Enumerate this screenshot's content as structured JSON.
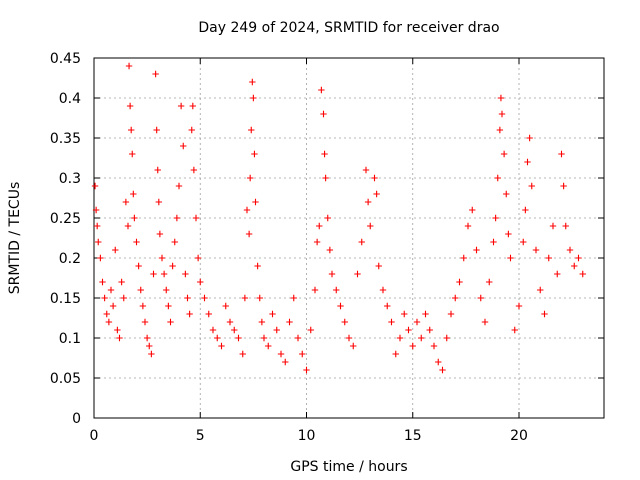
{
  "chart_data": {
    "type": "scatter",
    "title": "Day 249 of 2024, SRMTID for receiver drao",
    "xlabel": "GPS time / hours",
    "ylabel": "SRMTID / TECUs",
    "xlim": [
      0,
      24
    ],
    "ylim": [
      0,
      0.45
    ],
    "xticks": [
      0,
      5,
      10,
      15,
      20
    ],
    "xtick_labels": [
      "0",
      "5",
      "10",
      "15",
      "20"
    ],
    "yticks": [
      0,
      0.05,
      0.1,
      0.15,
      0.2,
      0.25,
      0.3,
      0.35,
      0.4,
      0.45
    ],
    "ytick_labels": [
      "0",
      "0.05",
      "0.1",
      "0.15",
      "0.2",
      "0.25",
      "0.3",
      "0.35",
      "0.4",
      "0.45"
    ],
    "grid": true,
    "marker": "+",
    "marker_color": "#ff0000",
    "series": [
      {
        "name": "SRMTID",
        "points": [
          [
            0.05,
            0.29
          ],
          [
            0.1,
            0.26
          ],
          [
            0.15,
            0.24
          ],
          [
            0.2,
            0.22
          ],
          [
            0.3,
            0.2
          ],
          [
            0.4,
            0.17
          ],
          [
            0.5,
            0.15
          ],
          [
            0.6,
            0.13
          ],
          [
            0.7,
            0.12
          ],
          [
            0.8,
            0.16
          ],
          [
            0.9,
            0.14
          ],
          [
            1.0,
            0.21
          ],
          [
            1.1,
            0.11
          ],
          [
            1.2,
            0.1
          ],
          [
            1.3,
            0.17
          ],
          [
            1.4,
            0.15
          ],
          [
            1.5,
            0.27
          ],
          [
            1.6,
            0.24
          ],
          [
            1.65,
            0.44
          ],
          [
            1.7,
            0.39
          ],
          [
            1.75,
            0.36
          ],
          [
            1.8,
            0.33
          ],
          [
            1.85,
            0.28
          ],
          [
            1.9,
            0.25
          ],
          [
            2.0,
            0.22
          ],
          [
            2.1,
            0.19
          ],
          [
            2.2,
            0.16
          ],
          [
            2.3,
            0.14
          ],
          [
            2.4,
            0.12
          ],
          [
            2.5,
            0.1
          ],
          [
            2.6,
            0.09
          ],
          [
            2.7,
            0.08
          ],
          [
            2.8,
            0.18
          ],
          [
            2.9,
            0.43
          ],
          [
            2.95,
            0.36
          ],
          [
            3.0,
            0.31
          ],
          [
            3.05,
            0.27
          ],
          [
            3.1,
            0.23
          ],
          [
            3.2,
            0.2
          ],
          [
            3.3,
            0.18
          ],
          [
            3.4,
            0.16
          ],
          [
            3.5,
            0.14
          ],
          [
            3.6,
            0.12
          ],
          [
            3.7,
            0.19
          ],
          [
            3.8,
            0.22
          ],
          [
            3.9,
            0.25
          ],
          [
            4.0,
            0.29
          ],
          [
            4.1,
            0.39
          ],
          [
            4.2,
            0.34
          ],
          [
            4.3,
            0.18
          ],
          [
            4.4,
            0.15
          ],
          [
            4.5,
            0.13
          ],
          [
            4.6,
            0.36
          ],
          [
            4.65,
            0.39
          ],
          [
            4.7,
            0.31
          ],
          [
            4.8,
            0.25
          ],
          [
            4.9,
            0.2
          ],
          [
            5.0,
            0.17
          ],
          [
            5.2,
            0.15
          ],
          [
            5.4,
            0.13
          ],
          [
            5.6,
            0.11
          ],
          [
            5.8,
            0.1
          ],
          [
            6.0,
            0.09
          ],
          [
            6.2,
            0.14
          ],
          [
            6.4,
            0.12
          ],
          [
            6.6,
            0.11
          ],
          [
            6.8,
            0.1
          ],
          [
            7.0,
            0.08
          ],
          [
            7.1,
            0.15
          ],
          [
            7.2,
            0.26
          ],
          [
            7.3,
            0.23
          ],
          [
            7.35,
            0.3
          ],
          [
            7.4,
            0.36
          ],
          [
            7.45,
            0.42
          ],
          [
            7.5,
            0.4
          ],
          [
            7.55,
            0.33
          ],
          [
            7.6,
            0.27
          ],
          [
            7.7,
            0.19
          ],
          [
            7.8,
            0.15
          ],
          [
            7.9,
            0.12
          ],
          [
            8.0,
            0.1
          ],
          [
            8.2,
            0.09
          ],
          [
            8.4,
            0.13
          ],
          [
            8.6,
            0.11
          ],
          [
            8.8,
            0.08
          ],
          [
            9.0,
            0.07
          ],
          [
            9.2,
            0.12
          ],
          [
            9.4,
            0.15
          ],
          [
            9.6,
            0.1
          ],
          [
            9.8,
            0.08
          ],
          [
            10.0,
            0.06
          ],
          [
            10.2,
            0.11
          ],
          [
            10.4,
            0.16
          ],
          [
            10.5,
            0.22
          ],
          [
            10.6,
            0.24
          ],
          [
            10.7,
            0.41
          ],
          [
            10.8,
            0.38
          ],
          [
            10.85,
            0.33
          ],
          [
            10.9,
            0.3
          ],
          [
            11.0,
            0.25
          ],
          [
            11.1,
            0.21
          ],
          [
            11.2,
            0.18
          ],
          [
            11.4,
            0.16
          ],
          [
            11.6,
            0.14
          ],
          [
            11.8,
            0.12
          ],
          [
            12.0,
            0.1
          ],
          [
            12.2,
            0.09
          ],
          [
            12.4,
            0.18
          ],
          [
            12.6,
            0.22
          ],
          [
            12.8,
            0.31
          ],
          [
            12.9,
            0.27
          ],
          [
            13.0,
            0.24
          ],
          [
            13.2,
            0.3
          ],
          [
            13.3,
            0.28
          ],
          [
            13.4,
            0.19
          ],
          [
            13.6,
            0.16
          ],
          [
            13.8,
            0.14
          ],
          [
            14.0,
            0.12
          ],
          [
            14.2,
            0.08
          ],
          [
            14.4,
            0.1
          ],
          [
            14.6,
            0.13
          ],
          [
            14.8,
            0.11
          ],
          [
            15.0,
            0.09
          ],
          [
            15.2,
            0.12
          ],
          [
            15.4,
            0.1
          ],
          [
            15.6,
            0.13
          ],
          [
            15.8,
            0.11
          ],
          [
            16.0,
            0.09
          ],
          [
            16.2,
            0.07
          ],
          [
            16.4,
            0.06
          ],
          [
            16.6,
            0.1
          ],
          [
            16.8,
            0.13
          ],
          [
            17.0,
            0.15
          ],
          [
            17.2,
            0.17
          ],
          [
            17.4,
            0.2
          ],
          [
            17.6,
            0.24
          ],
          [
            17.8,
            0.26
          ],
          [
            18.0,
            0.21
          ],
          [
            18.2,
            0.15
          ],
          [
            18.4,
            0.12
          ],
          [
            18.6,
            0.17
          ],
          [
            18.8,
            0.22
          ],
          [
            18.9,
            0.25
          ],
          [
            19.0,
            0.3
          ],
          [
            19.1,
            0.36
          ],
          [
            19.15,
            0.4
          ],
          [
            19.2,
            0.38
          ],
          [
            19.3,
            0.33
          ],
          [
            19.4,
            0.28
          ],
          [
            19.5,
            0.23
          ],
          [
            19.6,
            0.2
          ],
          [
            19.8,
            0.11
          ],
          [
            20.0,
            0.14
          ],
          [
            20.2,
            0.22
          ],
          [
            20.3,
            0.26
          ],
          [
            20.4,
            0.32
          ],
          [
            20.5,
            0.35
          ],
          [
            20.6,
            0.29
          ],
          [
            20.8,
            0.21
          ],
          [
            21.0,
            0.16
          ],
          [
            21.2,
            0.13
          ],
          [
            21.4,
            0.2
          ],
          [
            21.6,
            0.24
          ],
          [
            21.8,
            0.18
          ],
          [
            22.0,
            0.33
          ],
          [
            22.1,
            0.29
          ],
          [
            22.2,
            0.24
          ],
          [
            22.4,
            0.21
          ],
          [
            22.6,
            0.19
          ],
          [
            22.8,
            0.2
          ],
          [
            23.0,
            0.18
          ]
        ]
      }
    ]
  }
}
